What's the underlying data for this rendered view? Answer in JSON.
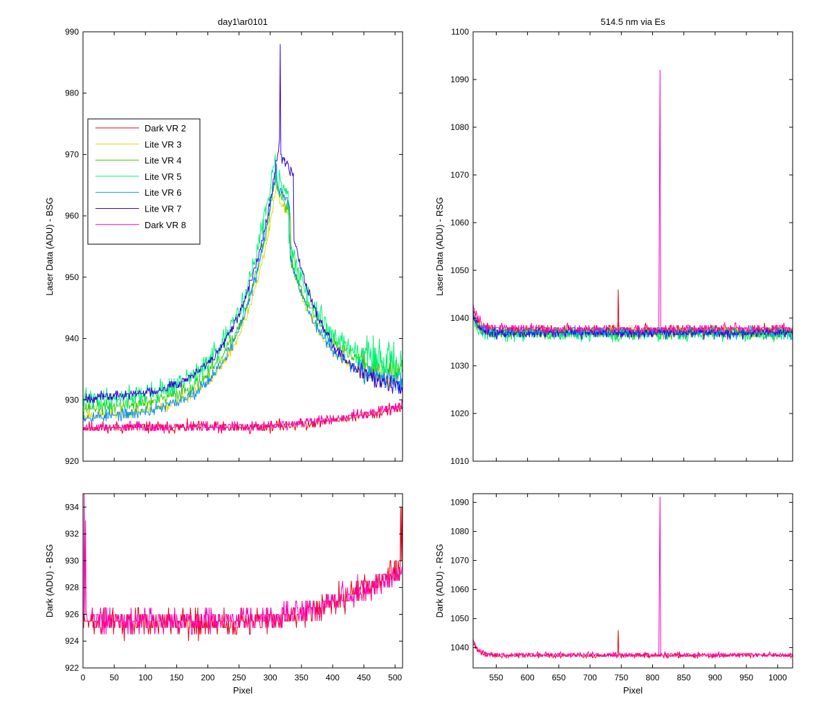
{
  "figure": {
    "background": "#ffffff"
  },
  "chart_data": [
    {
      "type": "line",
      "title": "day1\\ar0101",
      "xlabel": "",
      "ylabel": "Laser Data (ADU) - BSG",
      "xlim": [
        0,
        512
      ],
      "ylim": [
        920,
        990
      ],
      "xticks": [
        0,
        50,
        100,
        150,
        200,
        250,
        300,
        350,
        400,
        450,
        500
      ],
      "yticks": [
        920,
        930,
        940,
        950,
        960,
        970,
        980,
        990
      ],
      "show_xticklabels": false,
      "grid": false,
      "legend": {
        "placement": "upper-left",
        "entries": [
          "Dark VR 2",
          "Lite VR 3",
          "Lite VR 4",
          "Lite VR 5",
          "Lite VR 6",
          "Lite VR 7",
          "Dark VR 8"
        ]
      },
      "series": [
        {
          "name": "Dark VR 2",
          "color": "#e8001a",
          "shape": "flat_rise",
          "x_range": [
            0,
            512
          ],
          "base": 925.5,
          "end": 928.8,
          "noise": 0.9,
          "seed": 11,
          "spikes": []
        },
        {
          "name": "Lite VR 3",
          "color": "#e6d400",
          "shape": "peak",
          "x_range": [
            0,
            512
          ],
          "base": 927.3,
          "peak_x": 312,
          "peak_y": 966,
          "end_level": 932,
          "noise": 0.8,
          "seed": 23,
          "spikes": []
        },
        {
          "name": "Lite VR 4",
          "color": "#33cc00",
          "shape": "peak",
          "x_range": [
            0,
            512
          ],
          "base": 928.5,
          "peak_x": 310,
          "peak_y": 967,
          "end_level": 934,
          "noise": 1.1,
          "seed": 37,
          "spikes": []
        },
        {
          "name": "Lite VR 5",
          "color": "#00f070",
          "shape": "peak",
          "x_range": [
            0,
            512
          ],
          "base": 929.8,
          "peak_x": 308,
          "peak_y": 970,
          "end_level": 935,
          "noise": 1.8,
          "seed": 41,
          "spikes": []
        },
        {
          "name": "Lite VR 6",
          "color": "#0090ff",
          "shape": "peak",
          "x_range": [
            0,
            512
          ],
          "base": 927.0,
          "peak_x": 310,
          "peak_y": 968,
          "end_level": 932,
          "noise": 0.9,
          "seed": 53,
          "spikes": []
        },
        {
          "name": "Lite VR 7",
          "color": "#3300dd",
          "shape": "peak",
          "x_range": [
            0,
            512
          ],
          "base": 930.2,
          "peak_x": 316,
          "peak_y": 973,
          "end_level": 931,
          "noise": 0.8,
          "seed": 67,
          "spikes": [
            [
              316,
              988
            ]
          ]
        },
        {
          "name": "Dark VR 8",
          "color": "#ff00b4",
          "shape": "flat_rise",
          "x_range": [
            0,
            512
          ],
          "base": 925.6,
          "end": 929.0,
          "noise": 0.8,
          "seed": 79,
          "spikes": []
        }
      ]
    },
    {
      "type": "line",
      "title": "514.5 nm via Es",
      "xlabel": "",
      "ylabel": "Laser Data (ADU) - RSG",
      "xlim": [
        513,
        1024
      ],
      "ylim": [
        1010,
        1100
      ],
      "xticks": [
        550,
        600,
        650,
        700,
        750,
        800,
        850,
        900,
        950,
        1000
      ],
      "yticks": [
        1010,
        1020,
        1030,
        1040,
        1050,
        1060,
        1070,
        1080,
        1090,
        1100
      ],
      "show_xticklabels": false,
      "grid": false,
      "series": [
        {
          "name": "Dark VR 2",
          "color": "#e8001a",
          "shape": "decay",
          "x_range": [
            513,
            1024
          ],
          "base": 1037.5,
          "start": 1042,
          "noise": 1.0,
          "seed": 101,
          "spikes": [
            [
              745,
              1046
            ]
          ]
        },
        {
          "name": "Lite VR 3",
          "color": "#e6d400",
          "shape": "decay",
          "x_range": [
            513,
            1024
          ],
          "base": 1037.2,
          "start": 1041,
          "noise": 1.2,
          "seed": 113,
          "spikes": []
        },
        {
          "name": "Lite VR 4",
          "color": "#33cc00",
          "shape": "decay",
          "x_range": [
            513,
            1024
          ],
          "base": 1036.8,
          "start": 1041,
          "noise": 1.2,
          "seed": 127,
          "spikes": []
        },
        {
          "name": "Lite VR 5",
          "color": "#00f070",
          "shape": "decay",
          "x_range": [
            513,
            1024
          ],
          "base": 1036.6,
          "start": 1040,
          "noise": 1.3,
          "seed": 131,
          "spikes": []
        },
        {
          "name": "Lite VR 6",
          "color": "#0090ff",
          "shape": "decay",
          "x_range": [
            513,
            1024
          ],
          "base": 1037.0,
          "start": 1041,
          "noise": 1.1,
          "seed": 137,
          "spikes": []
        },
        {
          "name": "Lite VR 7",
          "color": "#3300dd",
          "shape": "decay",
          "x_range": [
            513,
            1024
          ],
          "base": 1036.9,
          "start": 1041,
          "noise": 1.0,
          "seed": 149,
          "spikes": []
        },
        {
          "name": "Dark VR 8",
          "color": "#ff00b4",
          "shape": "decay",
          "x_range": [
            513,
            1024
          ],
          "base": 1037.8,
          "start": 1043,
          "noise": 0.9,
          "seed": 151,
          "spikes": [
            [
              811,
              1065
            ],
            [
              812,
              1092
            ]
          ]
        }
      ]
    },
    {
      "type": "line",
      "title": "",
      "xlabel": "Pixel",
      "ylabel": "Dark (ADU) - BSG",
      "xlim": [
        0,
        512
      ],
      "ylim": [
        922,
        935
      ],
      "xticks": [
        0,
        50,
        100,
        150,
        200,
        250,
        300,
        350,
        400,
        450,
        500
      ],
      "yticks": [
        922,
        924,
        926,
        928,
        930,
        932,
        934
      ],
      "show_xticklabels": true,
      "grid": false,
      "series": [
        {
          "name": "Dark VR 2",
          "color": "#e8001a",
          "shape": "flat_rise",
          "x_range": [
            0,
            512
          ],
          "base": 925.4,
          "end": 929.5,
          "noise": 1.0,
          "seed": 211,
          "spikes": [
            [
              509,
              934
            ],
            [
              511,
              934
            ]
          ]
        },
        {
          "name": "Dark VR 8",
          "color": "#ff00b4",
          "shape": "flat_rise",
          "x_range": [
            0,
            512
          ],
          "base": 925.6,
          "end": 929.2,
          "noise": 0.9,
          "seed": 223,
          "spikes": [
            [
              2,
              935
            ],
            [
              4,
              933
            ]
          ]
        }
      ]
    },
    {
      "type": "line",
      "title": "",
      "xlabel": "Pixel",
      "ylabel": "Dark (ADU) - RSG",
      "xlim": [
        513,
        1024
      ],
      "ylim": [
        1033,
        1093
      ],
      "xticks": [
        550,
        600,
        650,
        700,
        750,
        800,
        850,
        900,
        950,
        1000
      ],
      "yticks": [
        1040,
        1050,
        1060,
        1070,
        1080,
        1090
      ],
      "show_xticklabels": true,
      "grid": false,
      "series": [
        {
          "name": "Dark VR 2",
          "color": "#e8001a",
          "shape": "decay",
          "x_range": [
            513,
            1024
          ],
          "base": 1037.3,
          "start": 1042,
          "noise": 0.8,
          "seed": 307,
          "spikes": [
            [
              745,
              1046
            ]
          ]
        },
        {
          "name": "Dark VR 8",
          "color": "#ff00b4",
          "shape": "decay",
          "x_range": [
            513,
            1024
          ],
          "base": 1037.5,
          "start": 1043,
          "noise": 0.8,
          "seed": 311,
          "spikes": [
            [
              811,
              1065
            ],
            [
              812,
              1092
            ]
          ]
        }
      ]
    }
  ]
}
